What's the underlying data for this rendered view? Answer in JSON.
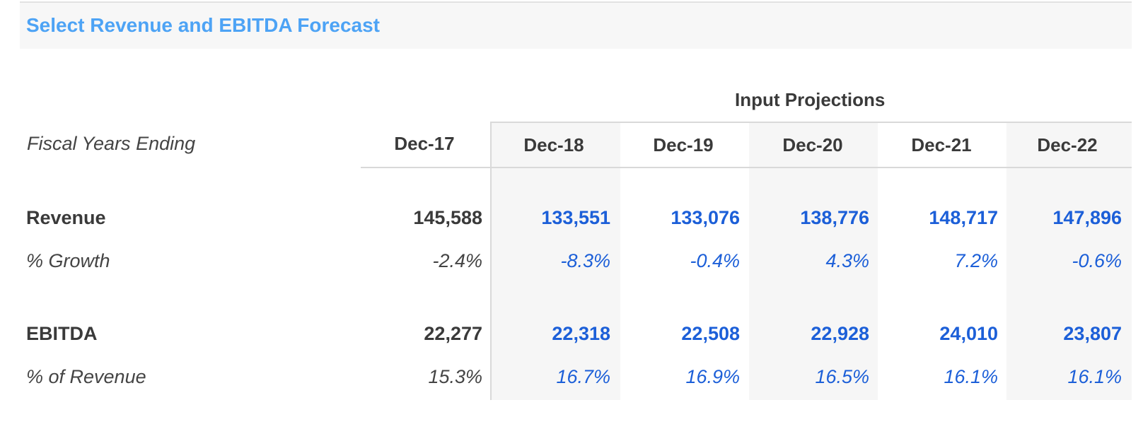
{
  "title": "Select Revenue and EBITDA Forecast",
  "projections_label": "Input Projections",
  "fiscal_label": "Fiscal Years Ending",
  "columns": [
    "Dec-17",
    "Dec-18",
    "Dec-19",
    "Dec-20",
    "Dec-21",
    "Dec-22"
  ],
  "rows": {
    "revenue": {
      "label": "Revenue",
      "values": [
        "145,588",
        "133,551",
        "133,076",
        "138,776",
        "148,717",
        "147,896"
      ]
    },
    "growth": {
      "label": "% Growth",
      "values": [
        "-2.4%",
        "-8.3%",
        "-0.4%",
        "4.3%",
        "7.2%",
        "-0.6%"
      ]
    },
    "ebitda": {
      "label": "EBITDA",
      "values": [
        "22,277",
        "22,318",
        "22,508",
        "22,928",
        "24,010",
        "23,807"
      ]
    },
    "margin": {
      "label": "% of Revenue",
      "values": [
        "15.3%",
        "16.7%",
        "16.9%",
        "16.5%",
        "16.1%",
        "16.1%"
      ]
    }
  },
  "colors": {
    "title": "#4da3f5",
    "projection_value": "#1c5fd8",
    "historical_value": "#3a3a3a",
    "shade": "#f6f6f6",
    "rule": "#d9d9d9"
  }
}
